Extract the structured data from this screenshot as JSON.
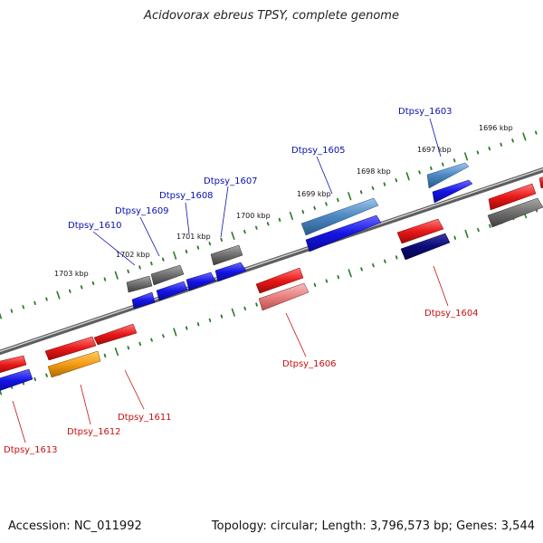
{
  "title": "Acidovorax ebreus TPSY, complete genome",
  "footer": {
    "accession": "Accession: NC_011992",
    "summary": "Topology: circular; Length: 3,796,573 bp; Genes: 3,544"
  },
  "ruler_labels": [
    "1696 kbp",
    "1697 kbp",
    "1698 kbp",
    "1699 kbp",
    "1700 kbp",
    "1701 kbp",
    "1702 kbp",
    "1703 kbp"
  ],
  "genes_forward": [
    "Dtpsy_1603",
    "Dtpsy_1605",
    "Dtpsy_1607",
    "Dtpsy_1608",
    "Dtpsy_1609",
    "Dtpsy_1610"
  ],
  "genes_reverse": [
    "Dtpsy_1604",
    "Dtpsy_1606",
    "Dtpsy_1611",
    "Dtpsy_1612",
    "Dtpsy_1613"
  ],
  "colors": {
    "forward_label": "#0a10b0",
    "reverse_label": "#c81010",
    "backbone": "#888888",
    "ticks": "#2a7a2a",
    "blue": "#1414e6",
    "dark_navy": "#0b0b78",
    "steel_blue": "#4a86c0",
    "gray": "#6e6e6e",
    "red": "#e81818",
    "light_red": "#e88080",
    "orange": "#f39b12"
  }
}
